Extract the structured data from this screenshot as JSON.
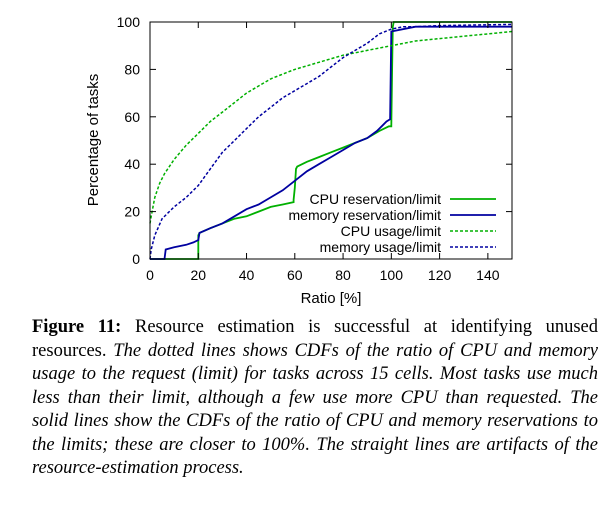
{
  "chart_data": {
    "type": "line",
    "xlabel": "Ratio [%]",
    "ylabel": "Percentage of tasks",
    "xlim": [
      0,
      150
    ],
    "ylim": [
      0,
      100
    ],
    "x_ticks": [
      "0",
      "20",
      "40",
      "60",
      "80",
      "100",
      "120",
      "140"
    ],
    "y_ticks": [
      "0",
      "20",
      "40",
      "60",
      "80",
      "100"
    ],
    "grid": false,
    "legend_position": "bottom-right",
    "series": [
      {
        "name": "CPU reservation/limit",
        "style": "solid",
        "color": "#00b000",
        "points": [
          [
            0,
            0
          ],
          [
            20,
            0
          ],
          [
            20,
            10
          ],
          [
            20.5,
            11
          ],
          [
            25,
            13
          ],
          [
            30,
            15
          ],
          [
            35,
            17
          ],
          [
            40,
            18
          ],
          [
            45,
            20
          ],
          [
            50,
            22
          ],
          [
            55,
            23
          ],
          [
            59.5,
            24
          ],
          [
            59.5,
            25
          ],
          [
            60,
            30
          ],
          [
            60.5,
            38
          ],
          [
            61,
            39
          ],
          [
            65,
            41
          ],
          [
            70,
            43
          ],
          [
            75,
            45
          ],
          [
            80,
            47
          ],
          [
            85,
            49
          ],
          [
            90,
            51
          ],
          [
            95,
            54
          ],
          [
            99,
            56
          ],
          [
            100,
            56
          ],
          [
            100.3,
            80
          ],
          [
            100.6,
            98
          ],
          [
            101,
            100
          ],
          [
            150,
            100
          ]
        ]
      },
      {
        "name": "memory reservation/limit",
        "style": "solid",
        "color": "#0000a0",
        "points": [
          [
            0,
            0
          ],
          [
            6,
            0
          ],
          [
            6.5,
            4
          ],
          [
            10,
            5
          ],
          [
            15,
            6
          ],
          [
            18,
            7
          ],
          [
            20,
            8
          ],
          [
            20.5,
            11
          ],
          [
            25,
            13
          ],
          [
            30,
            15
          ],
          [
            35,
            18
          ],
          [
            40,
            21
          ],
          [
            45,
            23
          ],
          [
            50,
            26
          ],
          [
            55,
            29
          ],
          [
            60,
            33
          ],
          [
            65,
            37
          ],
          [
            70,
            40
          ],
          [
            75,
            43
          ],
          [
            80,
            46
          ],
          [
            85,
            49
          ],
          [
            90,
            51
          ],
          [
            94,
            54
          ],
          [
            96,
            56
          ],
          [
            98,
            58
          ],
          [
            99.5,
            59
          ],
          [
            100,
            96
          ],
          [
            110,
            98
          ],
          [
            150,
            98
          ]
        ]
      },
      {
        "name": "CPU usage/limit",
        "style": "dashed",
        "color": "#00b000",
        "points": [
          [
            0,
            15
          ],
          [
            0.5,
            18
          ],
          [
            2,
            26
          ],
          [
            4,
            32
          ],
          [
            6,
            36
          ],
          [
            10,
            42
          ],
          [
            15,
            48
          ],
          [
            20,
            53
          ],
          [
            25,
            58
          ],
          [
            30,
            62
          ],
          [
            35,
            66
          ],
          [
            40,
            70
          ],
          [
            45,
            73
          ],
          [
            50,
            76
          ],
          [
            55,
            78
          ],
          [
            60,
            80
          ],
          [
            70,
            83
          ],
          [
            80,
            86
          ],
          [
            90,
            88
          ],
          [
            100,
            90
          ],
          [
            110,
            92
          ],
          [
            120,
            93
          ],
          [
            130,
            94
          ],
          [
            140,
            95
          ],
          [
            150,
            96
          ]
        ]
      },
      {
        "name": "memory usage/limit",
        "style": "dashed",
        "color": "#0000a0",
        "points": [
          [
            0,
            0
          ],
          [
            0.5,
            4
          ],
          [
            2,
            10
          ],
          [
            5,
            17
          ],
          [
            10,
            22
          ],
          [
            15,
            26
          ],
          [
            20,
            31
          ],
          [
            25,
            38
          ],
          [
            30,
            45
          ],
          [
            35,
            50
          ],
          [
            40,
            55
          ],
          [
            45,
            60
          ],
          [
            50,
            64
          ],
          [
            55,
            68
          ],
          [
            60,
            71
          ],
          [
            65,
            74
          ],
          [
            70,
            77
          ],
          [
            75,
            81
          ],
          [
            80,
            85
          ],
          [
            85,
            88
          ],
          [
            90,
            91
          ],
          [
            95,
            95
          ],
          [
            100,
            97
          ],
          [
            105,
            98
          ],
          [
            110,
            98
          ],
          [
            120,
            98.5
          ],
          [
            150,
            99
          ]
        ]
      }
    ]
  },
  "caption": {
    "label": "Figure 11:",
    "lead": "Resource estimation is successful at identifying unused resources.",
    "body": "The dotted lines shows CDFs of the ratio of CPU and memory usage to the request (limit) for tasks across 15 cells. Most tasks use much less than their limit, although a few use more CPU than requested. The solid lines show the CDFs of the ratio of CPU and memory reservations to the limits; these are closer to 100%. The straight lines are artifacts of the resource-estimation process."
  }
}
